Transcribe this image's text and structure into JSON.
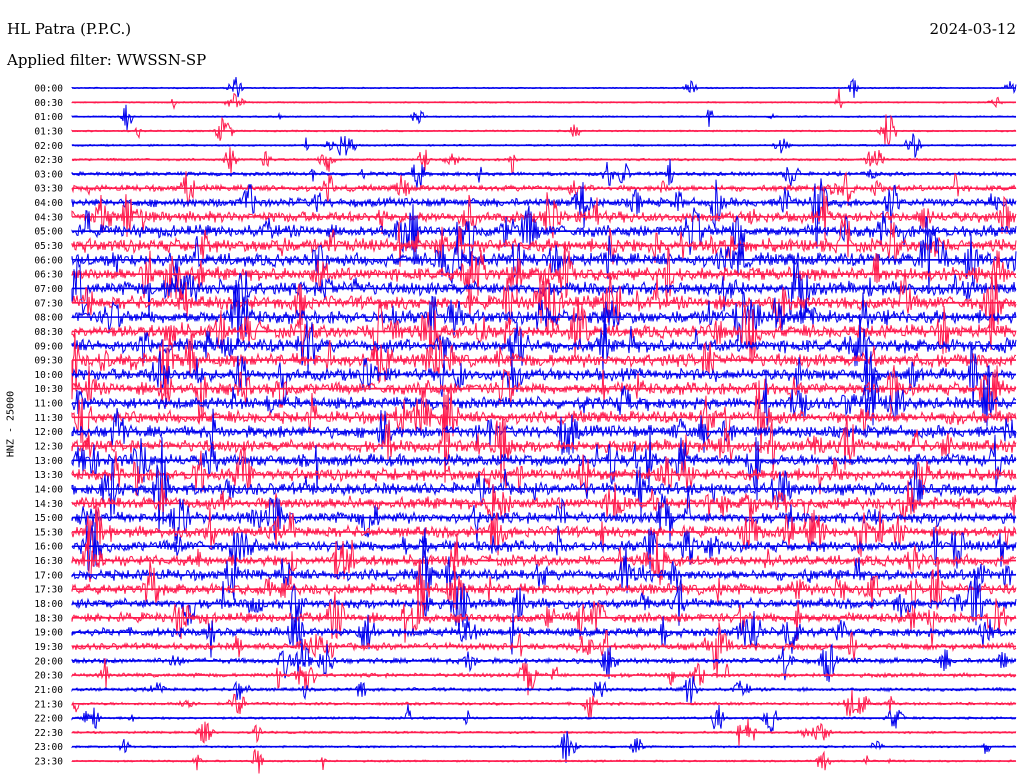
{
  "header": {
    "station": "HL Patra (P.P.C.)",
    "filter": "Applied filter: WWSSN-SP",
    "date": "2024-03-12"
  },
  "chart_data": {
    "type": "line",
    "title": "HL Patra (P.P.C.)",
    "subtitle": "Applied filter: WWSSN-SP",
    "ylabel": "HNZ - 25000",
    "xlabel": "",
    "trace_labels": [
      "00:00",
      "00:30",
      "01:00",
      "01:30",
      "02:00",
      "02:30",
      "03:00",
      "03:30",
      "04:00",
      "04:30",
      "05:00",
      "05:30",
      "06:00",
      "06:30",
      "07:00",
      "07:30",
      "08:00",
      "08:30",
      "09:00",
      "09:30",
      "10:00",
      "10:30",
      "11:00",
      "11:30",
      "12:00",
      "12:30",
      "13:00",
      "13:30",
      "14:00",
      "14:30",
      "15:00",
      "15:30",
      "16:00",
      "16:30",
      "17:00",
      "17:30",
      "18:00",
      "18:30",
      "19:00",
      "19:30",
      "20:00",
      "20:30",
      "21:00",
      "21:30",
      "22:00",
      "22:30",
      "23:00",
      "23:30"
    ],
    "trace_colors": [
      "#0000ee",
      "#ff1a4d"
    ],
    "trace_activity": [
      0.1,
      0.12,
      0.15,
      0.18,
      0.22,
      0.3,
      0.45,
      0.6,
      0.75,
      0.85,
      0.9,
      0.95,
      0.95,
      0.95,
      0.95,
      0.95,
      0.95,
      0.95,
      0.95,
      0.95,
      0.9,
      0.9,
      0.9,
      0.9,
      0.9,
      0.9,
      0.9,
      0.9,
      0.9,
      0.9,
      0.85,
      0.85,
      0.85,
      0.85,
      0.85,
      0.85,
      0.8,
      0.8,
      0.75,
      0.65,
      0.55,
      0.45,
      0.4,
      0.35,
      0.3,
      0.28,
      0.25,
      0.22
    ],
    "grid": false
  }
}
